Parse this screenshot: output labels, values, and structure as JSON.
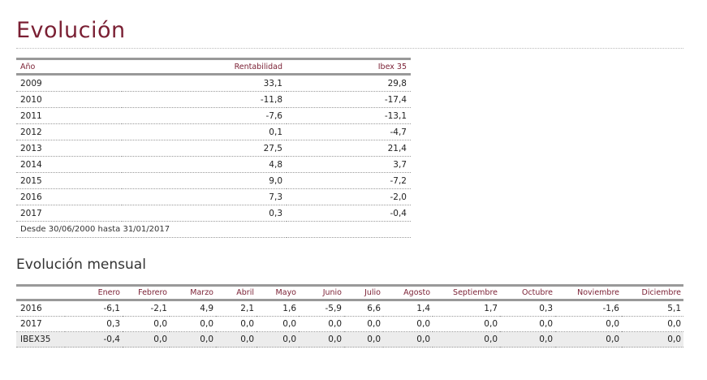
{
  "title": "Evolución",
  "annual": {
    "headers": {
      "year": "Año",
      "rent": "Rentabilidad",
      "ibex": "Ibex 35"
    },
    "rows": [
      {
        "year": "2009",
        "rent": "33,1",
        "ibex": "29,8"
      },
      {
        "year": "2010",
        "rent": "-11,8",
        "ibex": "-17,4"
      },
      {
        "year": "2011",
        "rent": "-7,6",
        "ibex": "-13,1"
      },
      {
        "year": "2012",
        "rent": "0,1",
        "ibex": "-4,7"
      },
      {
        "year": "2013",
        "rent": "27,5",
        "ibex": "21,4"
      },
      {
        "year": "2014",
        "rent": "4,8",
        "ibex": "3,7"
      },
      {
        "year": "2015",
        "rent": "9,0",
        "ibex": "-7,2"
      },
      {
        "year": "2016",
        "rent": "7,3",
        "ibex": "-2,0"
      },
      {
        "year": "2017",
        "rent": "0,3",
        "ibex": "-0,4"
      }
    ],
    "note": "Desde 30/06/2000 hasta 31/01/2017"
  },
  "monthly": {
    "title": "Evolución mensual",
    "months": [
      "Enero",
      "Febrero",
      "Marzo",
      "Abril",
      "Mayo",
      "Junio",
      "Julio",
      "Agosto",
      "Septiembre",
      "Octubre",
      "Noviembre",
      "Diciembre"
    ],
    "rows": [
      {
        "label": "2016",
        "values": [
          "-6,1",
          "-2,1",
          "4,9",
          "2,1",
          "1,6",
          "-5,9",
          "6,6",
          "1,4",
          "1,7",
          "0,3",
          "-1,6",
          "5,1"
        ]
      },
      {
        "label": "2017",
        "values": [
          "0,3",
          "0,0",
          "0,0",
          "0,0",
          "0,0",
          "0,0",
          "0,0",
          "0,0",
          "0,0",
          "0,0",
          "0,0",
          "0,0"
        ]
      },
      {
        "label": "IBEX35",
        "values": [
          "-0,4",
          "0,0",
          "0,0",
          "0,0",
          "0,0",
          "0,0",
          "0,0",
          "0,0",
          "0,0",
          "0,0",
          "0,0",
          "0,0"
        ]
      }
    ]
  }
}
